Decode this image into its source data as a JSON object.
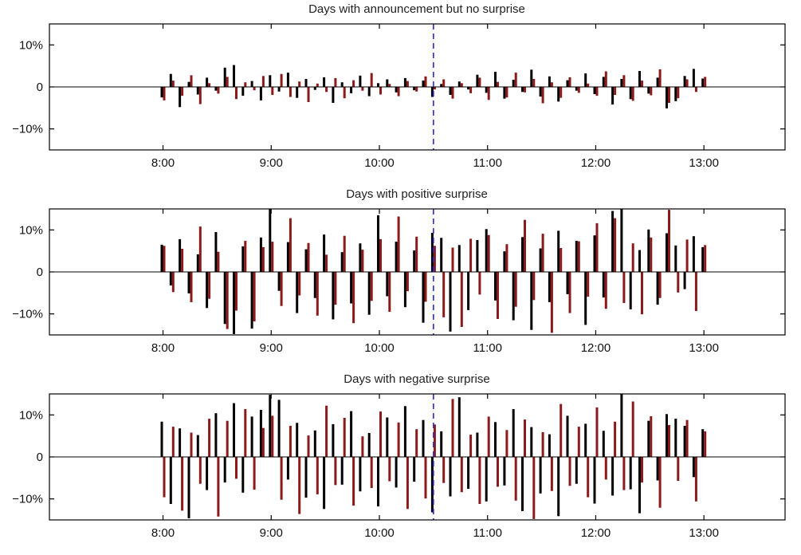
{
  "page": {
    "background": "#ffffff"
  },
  "chart_data": [
    {
      "type": "bar",
      "title": "Days with announcement but no surprise",
      "xlabel": "",
      "ylabel": "",
      "xlim_hours": [
        6.95,
        13.75
      ],
      "ylim": [
        -15,
        15
      ],
      "grid": false,
      "legend": "none",
      "xticks": [
        "8:00",
        "9:00",
        "10:00",
        "11:00",
        "12:00",
        "13:00"
      ],
      "yticks": [
        {
          "value": 10,
          "label": "10%"
        },
        {
          "value": 0,
          "label": "0"
        },
        {
          "value": -10,
          "label": "−10%"
        }
      ],
      "annotation_vline": {
        "hour_label": "10:30",
        "color": "#2b2bd0",
        "style": "dashed"
      },
      "categories": [
        "8:00",
        "8:05",
        "8:10",
        "8:15",
        "8:20",
        "8:25",
        "8:30",
        "8:35",
        "8:40",
        "8:45",
        "8:50",
        "8:55",
        "9:00",
        "9:05",
        "9:10",
        "9:15",
        "9:20",
        "9:25",
        "9:30",
        "9:35",
        "9:40",
        "9:45",
        "9:50",
        "9:55",
        "10:00",
        "10:05",
        "10:10",
        "10:15",
        "10:20",
        "10:25",
        "10:30",
        "10:35",
        "10:40",
        "10:45",
        "10:50",
        "10:55",
        "11:00",
        "11:05",
        "11:10",
        "11:15",
        "11:20",
        "11:25",
        "11:30",
        "11:35",
        "11:40",
        "11:45",
        "11:50",
        "11:55",
        "12:00",
        "12:05",
        "12:10",
        "12:15",
        "12:20",
        "12:25",
        "12:30",
        "12:35",
        "12:40",
        "12:45",
        "12:50",
        "12:55",
        "13:00"
      ],
      "series": [
        {
          "name": "black-bars",
          "color": "#000000",
          "values": [
            -2.5,
            3.1,
            -4.8,
            1.2,
            -1.8,
            2.2,
            -0.9,
            4.6,
            5.2,
            -2.1,
            1.4,
            -3.2,
            2.8,
            -1.1,
            3.4,
            -2.6,
            1.9,
            -0.7,
            2.3,
            -3.8,
            1.1,
            -1.5,
            2.7,
            -2.2,
            0.9,
            1.8,
            -1.3,
            2.1,
            -0.8,
            1.5,
            -2.4,
            0.7,
            -1.9,
            1.3,
            -0.6,
            2.9,
            -1.4,
            3.6,
            -2.8,
            1.7,
            -1.2,
            4.1,
            -2.3,
            2.5,
            -3.5,
            1.6,
            -0.9,
            3.2,
            -1.7,
            2.4,
            -4.2,
            1.9,
            -2.9,
            3.8,
            -1.6,
            2.2,
            -5.1,
            -3.4,
            2.6,
            4.3,
            2.0
          ]
        },
        {
          "name": "dark-red-bars",
          "color": "#8b1a1a",
          "values": [
            -3.2,
            1.5,
            -2.1,
            2.8,
            -4.1,
            0.9,
            -1.6,
            2.4,
            -2.9,
            1.1,
            -0.8,
            2.6,
            -1.9,
            3.1,
            -2.4,
            1.3,
            -3.6,
            0.8,
            -1.2,
            2.1,
            -2.7,
            1.6,
            -0.9,
            3.3,
            -1.8,
            0.7,
            -2.2,
            1.4,
            -1.1,
            2.5,
            -0.6,
            1.8,
            -2.8,
            0.9,
            -1.5,
            2.2,
            -3.1,
            1.2,
            -2.5,
            3.4,
            -1.3,
            1.9,
            -3.9,
            1.1,
            -2.6,
            2.3,
            -1.4,
            0.8,
            -2.1,
            3.7,
            -1.9,
            2.8,
            -3.3,
            1.5,
            -2.0,
            4.2,
            -3.8,
            -2.7,
            1.8,
            -1.2,
            2.4
          ]
        }
      ]
    },
    {
      "type": "bar",
      "title": "Days with positive surprise",
      "xlabel": "",
      "ylabel": "",
      "xlim_hours": [
        6.95,
        13.75
      ],
      "ylim": [
        -15,
        15
      ],
      "grid": false,
      "legend": "none",
      "xticks": [
        "8:00",
        "9:00",
        "10:00",
        "11:00",
        "12:00",
        "13:00"
      ],
      "yticks": [
        {
          "value": 10,
          "label": "10%"
        },
        {
          "value": 0,
          "label": "0"
        },
        {
          "value": -10,
          "label": "−10%"
        }
      ],
      "annotation_vline": {
        "hour_label": "10:30",
        "color": "#2b2bd0",
        "style": "dashed"
      },
      "categories": [
        "8:00",
        "8:05",
        "8:10",
        "8:15",
        "8:20",
        "8:25",
        "8:30",
        "8:35",
        "8:40",
        "8:45",
        "8:50",
        "8:55",
        "9:00",
        "9:05",
        "9:10",
        "9:15",
        "9:20",
        "9:25",
        "9:30",
        "9:35",
        "9:40",
        "9:45",
        "9:50",
        "9:55",
        "10:00",
        "10:05",
        "10:10",
        "10:15",
        "10:20",
        "10:25",
        "10:30",
        "10:35",
        "10:40",
        "10:45",
        "10:50",
        "10:55",
        "11:00",
        "11:05",
        "11:10",
        "11:15",
        "11:20",
        "11:25",
        "11:30",
        "11:35",
        "11:40",
        "11:45",
        "11:50",
        "11:55",
        "12:00",
        "12:05",
        "12:10",
        "12:15",
        "12:20",
        "12:25",
        "12:30",
        "12:35",
        "12:40",
        "12:45",
        "12:50",
        "12:55",
        "13:00"
      ],
      "series": [
        {
          "name": "black-bars",
          "color": "#000000",
          "values": [
            6.5,
            -3.2,
            7.8,
            -5.1,
            4.2,
            -8.6,
            9.5,
            -12.4,
            -14.8,
            6.1,
            -13.5,
            8.2,
            16.0,
            -4.5,
            7.1,
            -9.8,
            5.4,
            -6.2,
            8.9,
            -11.3,
            4.7,
            -7.5,
            6.8,
            -10.2,
            13.5,
            -5.8,
            7.2,
            -8.4,
            5.1,
            -12.1,
            9.3,
            8.1,
            -14.2,
            6.4,
            -9.1,
            7.6,
            10.2,
            -6.8,
            4.9,
            -11.5,
            8.3,
            -13.8,
            5.6,
            -7.2,
            9.8,
            -5.3,
            7.4,
            -12.6,
            8.7,
            -6.1,
            14.5,
            16.2,
            -8.9,
            5.2,
            10.1,
            -7.8,
            9.2,
            6.3,
            -4.1,
            8.5,
            5.9
          ]
        },
        {
          "name": "dark-red-bars",
          "color": "#8b1a1a",
          "values": [
            6.2,
            -4.8,
            5.5,
            -7.2,
            10.8,
            -6.4,
            4.8,
            -13.6,
            -9.2,
            7.4,
            -11.8,
            5.9,
            7.2,
            -8.1,
            12.8,
            -5.6,
            6.9,
            -10.4,
            4.1,
            -7.8,
            8.6,
            -12.2,
            5.3,
            -6.9,
            7.8,
            -9.5,
            13.2,
            -4.6,
            8.4,
            -7.1,
            6.2,
            -10.8,
            5.8,
            -13.1,
            7.9,
            -5.4,
            8.8,
            -11.2,
            6.6,
            -8.3,
            12.4,
            -6.7,
            9.1,
            -14.5,
            5.7,
            -9.8,
            7.3,
            -5.9,
            11.6,
            -8.8,
            12.8,
            -7.4,
            6.8,
            -10.1,
            8.2,
            -6.2,
            14.8,
            -4.9,
            7.7,
            -9.3,
            6.4
          ]
        }
      ]
    },
    {
      "type": "bar",
      "title": "Days with negative surprise",
      "xlabel": "",
      "ylabel": "",
      "xlim_hours": [
        6.95,
        13.75
      ],
      "ylim": [
        -15,
        15
      ],
      "grid": false,
      "legend": "none",
      "xticks": [
        "8:00",
        "9:00",
        "10:00",
        "11:00",
        "12:00",
        "13:00"
      ],
      "yticks": [
        {
          "value": 10,
          "label": "10%"
        },
        {
          "value": 0,
          "label": "0"
        },
        {
          "value": -10,
          "label": "−10%"
        }
      ],
      "annotation_vline": {
        "hour_label": "10:30",
        "color": "#2b2bd0",
        "style": "dashed"
      },
      "categories": [
        "8:00",
        "8:05",
        "8:10",
        "8:15",
        "8:20",
        "8:25",
        "8:30",
        "8:35",
        "8:40",
        "8:45",
        "8:50",
        "8:55",
        "9:00",
        "9:05",
        "9:10",
        "9:15",
        "9:20",
        "9:25",
        "9:30",
        "9:35",
        "9:40",
        "9:45",
        "9:50",
        "9:55",
        "10:00",
        "10:05",
        "10:10",
        "10:15",
        "10:20",
        "10:25",
        "10:30",
        "10:35",
        "10:40",
        "10:45",
        "10:50",
        "10:55",
        "11:00",
        "11:05",
        "11:10",
        "11:15",
        "11:20",
        "11:25",
        "11:30",
        "11:35",
        "11:40",
        "11:45",
        "11:50",
        "11:55",
        "12:00",
        "12:05",
        "12:10",
        "12:15",
        "12:20",
        "12:25",
        "12:30",
        "12:35",
        "12:40",
        "12:45",
        "12:50",
        "12:55",
        "13:00"
      ],
      "series": [
        {
          "name": "black-bars",
          "color": "#000000",
          "values": [
            8.4,
            -11.2,
            6.8,
            -14.6,
            5.2,
            -7.9,
            10.4,
            -6.1,
            12.8,
            -8.5,
            9.6,
            11.2,
            14.8,
            13.6,
            -5.4,
            8.1,
            -9.7,
            6.3,
            -12.4,
            7.8,
            -6.6,
            10.9,
            -8.2,
            5.7,
            -11.8,
            9.4,
            -7.3,
            12.1,
            -5.9,
            8.8,
            -13.2,
            6.1,
            -9.4,
            14.2,
            -7.6,
            5.8,
            -10.6,
            8.3,
            -6.8,
            11.4,
            -12.9,
            7.1,
            -8.7,
            5.4,
            -14.1,
            9.8,
            -6.4,
            7.9,
            -11.1,
            6.2,
            -9.2,
            15.6,
            -7.7,
            -13.4,
            8.6,
            -5.6,
            10.2,
            9.1,
            7.4,
            -4.8,
            6.6
          ]
        },
        {
          "name": "dark-red-bars",
          "color": "#8b1a1a",
          "values": [
            -9.6,
            7.2,
            -12.8,
            5.8,
            -6.4,
            9.1,
            -14.2,
            8.6,
            -5.2,
            11.4,
            -7.8,
            6.9,
            9.8,
            -10.2,
            7.4,
            -13.6,
            5.1,
            -8.9,
            12.2,
            -6.7,
            9.3,
            -11.6,
            4.9,
            -7.4,
            10.8,
            -5.8,
            8.2,
            -12.4,
            6.6,
            -9.9,
            7.7,
            -6.2,
            13.8,
            -8.4,
            5.3,
            -11.2,
            9.6,
            -7.1,
            6.4,
            -10.4,
            8.9,
            -14.8,
            5.9,
            -8.1,
            12.6,
            -6.9,
            7.2,
            -9.6,
            11.8,
            -5.4,
            8.4,
            -7.9,
            13.2,
            -6.1,
            9.7,
            -12.1,
            7.6,
            -5.7,
            8.8,
            -10.6,
            6.1
          ]
        }
      ]
    }
  ]
}
